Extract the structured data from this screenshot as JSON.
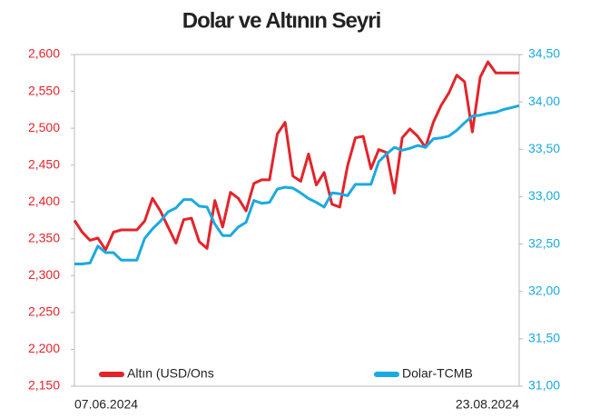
{
  "chart_data": {
    "type": "line",
    "title": "Dolar ve Altının Seyri",
    "categories": [
      "07.06.2024",
      null,
      null,
      null,
      null,
      null,
      null,
      null,
      null,
      null,
      null,
      null,
      null,
      null,
      null,
      null,
      null,
      null,
      null,
      null,
      null,
      null,
      null,
      null,
      null,
      null,
      null,
      null,
      null,
      null,
      null,
      null,
      null,
      null,
      null,
      null,
      null,
      null,
      null,
      null,
      null,
      null,
      null,
      null,
      null,
      null,
      null,
      null,
      null,
      null,
      null,
      null,
      null,
      null,
      null,
      null,
      null,
      "23.08.2024"
    ],
    "series": [
      {
        "name": "Altın (USD/Ons",
        "color": "#e3242b",
        "axis": "y",
        "values": [
          2375,
          2359,
          2348,
          2351,
          2335,
          2359,
          2362,
          2362,
          2362,
          2374,
          2405,
          2388,
          2366,
          2344,
          2376,
          2378,
          2346,
          2337,
          2402,
          2366,
          2413,
          2405,
          2388,
          2425,
          2430,
          2430,
          2492,
          2508,
          2435,
          2428,
          2465,
          2423,
          2440,
          2397,
          2393,
          2449,
          2487,
          2489,
          2445,
          2471,
          2467,
          2412,
          2487,
          2499,
          2489,
          2474,
          2508,
          2531,
          2548,
          2572,
          2563,
          2495,
          2569,
          2590,
          2575,
          2575,
          2575,
          2575
        ]
      },
      {
        "name": "Dolar-TCMB",
        "color": "#1ba9e1",
        "axis": "y2",
        "values": [
          32.29,
          32.29,
          32.3,
          32.48,
          32.41,
          32.41,
          32.33,
          32.33,
          32.33,
          32.56,
          32.66,
          32.74,
          32.84,
          32.88,
          32.97,
          32.97,
          32.9,
          32.89,
          32.71,
          32.59,
          32.59,
          32.68,
          32.73,
          32.96,
          32.93,
          32.94,
          33.08,
          33.1,
          33.09,
          33.04,
          32.98,
          32.94,
          32.89,
          33.04,
          33.03,
          33.01,
          33.13,
          33.13,
          33.13,
          33.37,
          33.45,
          33.52,
          33.49,
          33.51,
          33.54,
          33.52,
          33.61,
          33.62,
          33.64,
          33.7,
          33.78,
          33.85,
          33.86,
          33.88,
          33.89,
          33.92,
          33.94,
          33.96
        ]
      }
    ],
    "ylim": [
      2150,
      2600
    ],
    "yticks": [
      {
        "value": 2150,
        "label": "2,150"
      },
      {
        "value": 2200,
        "label": "2,200"
      },
      {
        "value": 2250,
        "label": "2,250"
      },
      {
        "value": 2300,
        "label": "2,300"
      },
      {
        "value": 2350,
        "label": "2,350"
      },
      {
        "value": 2400,
        "label": "2,400"
      },
      {
        "value": 2450,
        "label": "2,450"
      },
      {
        "value": 2500,
        "label": "2,500"
      },
      {
        "value": 2550,
        "label": "2,550"
      },
      {
        "value": 2600,
        "label": "2,600"
      }
    ],
    "y2lim": [
      31,
      34.5
    ],
    "y2ticks": [
      {
        "value": 31,
        "label": "31,00"
      },
      {
        "value": 31.5,
        "label": "31,50"
      },
      {
        "value": 32,
        "label": "32,00"
      },
      {
        "value": 32.5,
        "label": "32,50"
      },
      {
        "value": 33,
        "label": "33,00"
      },
      {
        "value": 33.5,
        "label": "33,50"
      },
      {
        "value": 34,
        "label": "34,00"
      },
      {
        "value": 34.5,
        "label": "34,50"
      }
    ],
    "grid": false,
    "legend": "bottom"
  }
}
